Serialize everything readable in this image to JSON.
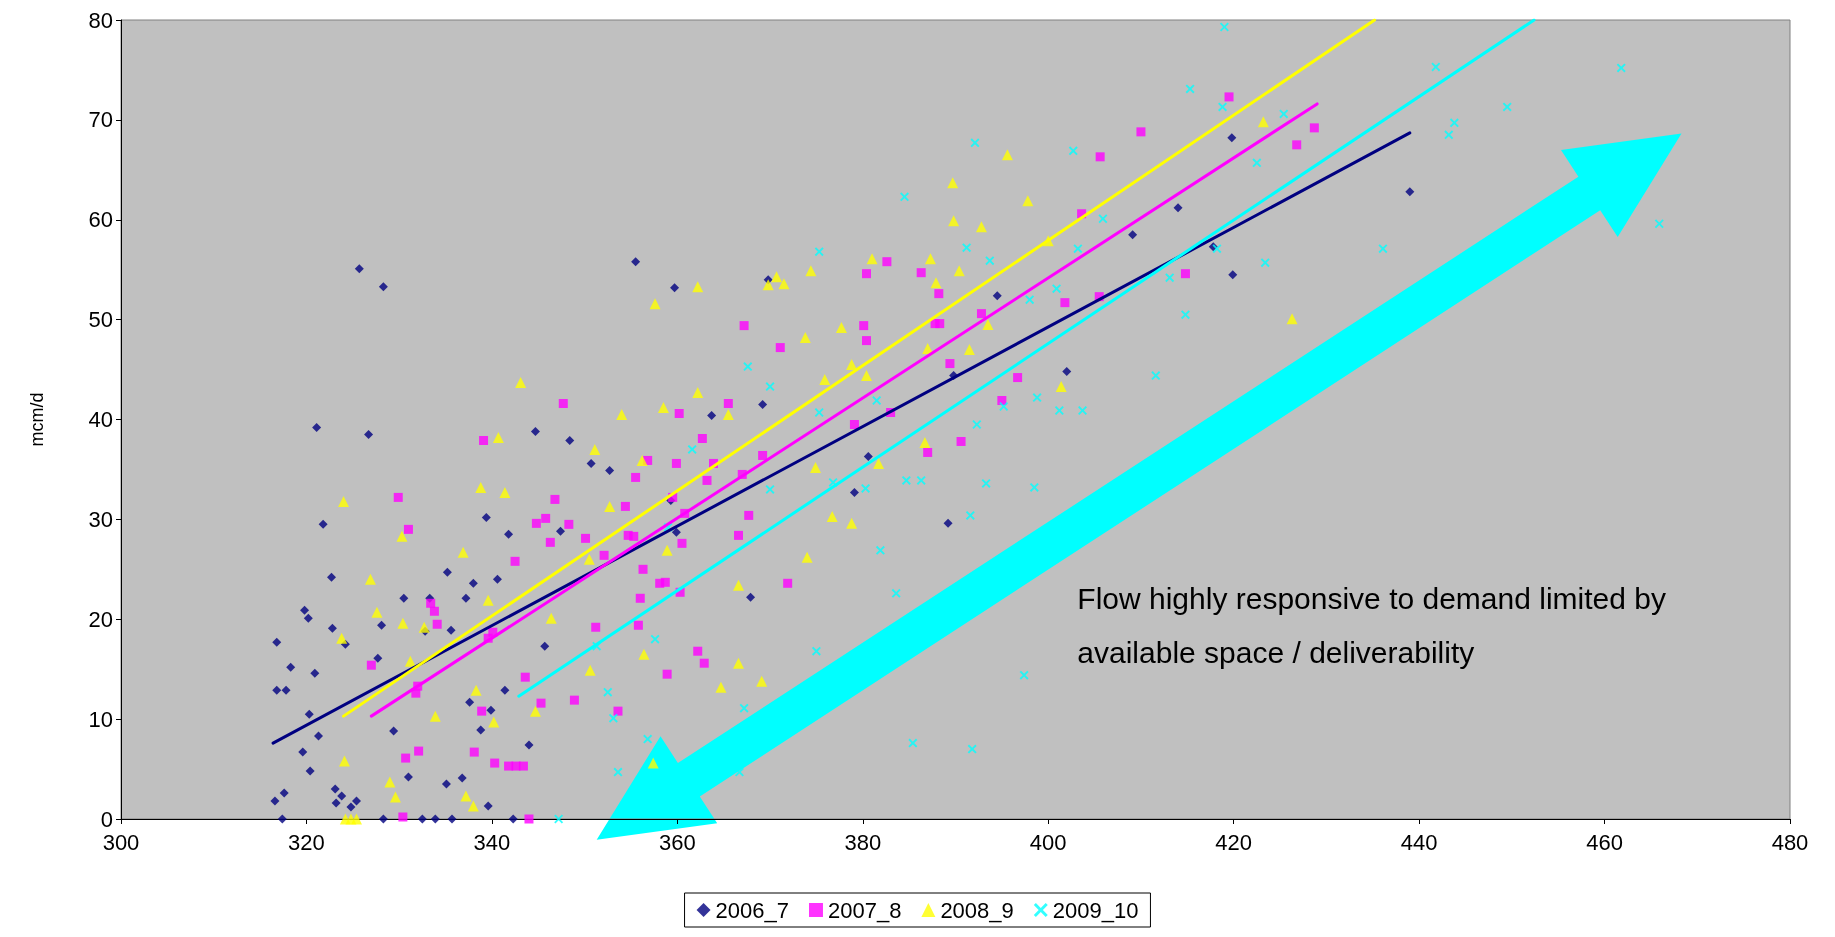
{
  "chart_data": {
    "type": "scatter",
    "ylabel": "mcm/d",
    "xlim": [
      300,
      480
    ],
    "xticks": [
      300,
      320,
      340,
      360,
      380,
      400,
      420,
      440,
      460,
      480
    ],
    "ylim": [
      0,
      80
    ],
    "yticks": [
      0,
      10,
      20,
      30,
      40,
      50,
      60,
      70,
      80
    ],
    "grid": false,
    "legend": "bottom",
    "annotations": [
      "Flow highly responsive to demand limited by available space / deliverability"
    ],
    "series": [
      {
        "name": "2006_7",
        "color": "#000080",
        "marker": "diamond",
        "x": [
          316.6,
          316.8,
          316.8,
          317.4,
          317.6,
          317.8,
          318.3,
          319.6,
          319.8,
          320.2,
          320.3,
          320.4,
          320.9,
          321.1,
          321.3,
          321.8,
          322.7,
          322.8,
          323.1,
          323.2,
          323.8,
          324.2,
          324.8,
          325.4,
          325.7,
          326.7,
          327.7,
          328.1,
          328.3,
          328.3,
          329.4,
          330.5,
          331.0,
          332.5,
          332.8,
          333.3,
          333.9,
          335.1,
          335.2,
          335.6,
          335.7,
          336.8,
          337.2,
          337.6,
          338.0,
          338.8,
          339.4,
          339.6,
          339.9,
          340.6,
          341.4,
          341.8,
          342.3,
          344.0,
          344.7,
          345.7,
          347.4,
          348.4,
          350.7,
          352.7,
          355.5,
          359.3,
          359.9,
          359.7,
          363.7,
          367.9,
          369.2,
          369.8,
          379.1,
          380.6,
          389.2,
          394.5,
          402.0,
          409.1,
          414.0,
          417.8,
          419.8,
          419.9,
          439.0,
          389.8
        ],
        "values": [
          1.8,
          17.7,
          12.9,
          0,
          2.6,
          12.9,
          15.2,
          6.7,
          20.9,
          20.1,
          10.5,
          4.8,
          14.6,
          39.2,
          8.3,
          29.5,
          24.2,
          19.1,
          3.0,
          1.6,
          2.3,
          17.5,
          1.2,
          1.8,
          55.1,
          38.5,
          16.1,
          19.4,
          53.3,
          0,
          8.8,
          22.1,
          4.2,
          0,
          18.8,
          22.1,
          0,
          3.5,
          24.7,
          18.9,
          0,
          4.1,
          22.1,
          11.7,
          23.6,
          8.9,
          30.2,
          1.3,
          10.9,
          24.0,
          12.9,
          28.5,
          0,
          7.4,
          38.8,
          17.3,
          28.8,
          37.9,
          35.6,
          34.9,
          55.8,
          31.9,
          28.7,
          53.2,
          40.4,
          22.2,
          41.5,
          54.0,
          32.7,
          36.3,
          29.6,
          52.4,
          44.8,
          58.5,
          61.2,
          57.3,
          68.2,
          54.5,
          62.8,
          44.4
        ]
      },
      {
        "name": "2007_8",
        "color": "#ff00ff",
        "marker": "square",
        "x": [
          327.0,
          329.9,
          330.4,
          330.7,
          331.0,
          331.8,
          332.0,
          332.1,
          333.4,
          333.8,
          334.1,
          338.1,
          338.9,
          339.1,
          339.6,
          340.1,
          340.3,
          341.8,
          342.5,
          342.6,
          343.4,
          343.6,
          344.0,
          344.8,
          345.3,
          345.8,
          346.3,
          346.8,
          347.7,
          348.3,
          348.9,
          350.1,
          351.2,
          352.1,
          353.6,
          354.4,
          354.7,
          355.3,
          355.5,
          355.8,
          356.0,
          356.3,
          356.8,
          358.1,
          358.7,
          358.9,
          359.5,
          359.9,
          360.2,
          360.3,
          360.5,
          360.8,
          362.2,
          362.7,
          362.9,
          363.2,
          363.9,
          365.5,
          366.6,
          367.0,
          367.2,
          367.7,
          369.2,
          371.1,
          371.9,
          379.1,
          380.1,
          380.4,
          380.4,
          382.6,
          383.0,
          386.3,
          387.0,
          387.8,
          388.2,
          388.3,
          389.4,
          390.6,
          392.8,
          395.0,
          396.7,
          401.8,
          403.6,
          405.5,
          405.6,
          410.0,
          414.8,
          419.5,
          426.8,
          428.7
        ],
        "values": [
          15.4,
          32.2,
          0.2,
          6.1,
          29.0,
          12.6,
          13.3,
          6.8,
          21.6,
          20.8,
          19.5,
          6.7,
          10.8,
          37.9,
          18.1,
          18.7,
          5.6,
          5.3,
          25.8,
          5.3,
          5.3,
          14.2,
          0,
          29.6,
          11.6,
          30.1,
          27.7,
          32.0,
          41.6,
          29.5,
          11.9,
          28.1,
          19.2,
          26.4,
          10.8,
          31.3,
          28.4,
          28.3,
          34.2,
          19.4,
          22.1,
          25.0,
          35.9,
          23.6,
          23.7,
          14.5,
          32.2,
          35.6,
          40.6,
          22.7,
          27.6,
          30.6,
          16.8,
          38.1,
          15.6,
          33.9,
          35.6,
          41.6,
          28.4,
          34.5,
          49.4,
          30.4,
          36.4,
          47.2,
          23.6,
          39.5,
          49.4,
          47.9,
          54.6,
          55.8,
          40.7,
          54.7,
          36.7,
          49.6,
          52.6,
          49.6,
          45.6,
          37.8,
          50.6,
          41.9,
          44.2,
          51.7,
          60.6,
          52.3,
          66.3,
          68.8,
          54.6,
          72.3,
          67.5,
          69.2
        ]
      },
      {
        "name": "2008_9",
        "color": "#ffff00",
        "marker": "triangle",
        "x": [
          324.1,
          324.0,
          323.8,
          324.2,
          324.8,
          325.4,
          326.9,
          327.6,
          329.0,
          329.6,
          330.3,
          330.4,
          331.2,
          332.7,
          333.9,
          336.9,
          337.2,
          338.0,
          338.3,
          338.8,
          339.6,
          340.2,
          340.7,
          341.4,
          343.1,
          344.7,
          346.4,
          350.5,
          351.1,
          350.6,
          352.7,
          354.0,
          356.2,
          356.4,
          357.4,
          357.6,
          358.5,
          358.9,
          362.2,
          362.2,
          365.5,
          364.7,
          366.6,
          366.6,
          369.1,
          369.8,
          370.7,
          371.5,
          374.0,
          373.8,
          374.4,
          374.9,
          375.9,
          376.7,
          377.7,
          378.8,
          378.8,
          380.4,
          381.0,
          381.7,
          386.7,
          387.0,
          387.3,
          387.9,
          389.7,
          389.8,
          390.4,
          391.5,
          392.8,
          393.5,
          395.6,
          397.8,
          400.0,
          401.4,
          423.2,
          426.3
        ],
        "values": [
          5.8,
          31.8,
          18.1,
          0,
          0,
          0,
          24.0,
          20.7,
          3.7,
          2.2,
          28.3,
          19.6,
          15.8,
          19.2,
          10.3,
          26.7,
          2.3,
          1.3,
          12.9,
          33.2,
          21.9,
          9.7,
          38.2,
          32.7,
          43.7,
          10.8,
          20.1,
          26.0,
          37.0,
          14.9,
          31.3,
          40.5,
          35.9,
          16.5,
          5.6,
          51.6,
          41.2,
          26.9,
          53.3,
          42.7,
          40.5,
          13.2,
          23.4,
          15.6,
          13.8,
          53.5,
          54.3,
          53.6,
          26.2,
          48.2,
          54.9,
          35.2,
          44.0,
          30.3,
          49.2,
          29.6,
          45.5,
          44.4,
          56.1,
          35.6,
          37.7,
          47.1,
          56.1,
          53.7,
          63.7,
          59.9,
          54.9,
          47.0,
          59.3,
          49.5,
          66.5,
          61.9,
          57.9,
          43.3,
          69.8,
          50.1
        ]
      },
      {
        "name": "2009_10",
        "color": "#00ffff",
        "marker": "cross",
        "x": [
          347.2,
          351.3,
          352.5,
          353.1,
          353.6,
          356.8,
          357.6,
          359.0,
          361.6,
          366.7,
          367.6,
          367.2,
          370.0,
          370.0,
          375.0,
          375.3,
          375.3,
          376.8,
          380.3,
          381.5,
          381.9,
          383.6,
          384.5,
          384.7,
          385.4,
          386.3,
          391.2,
          391.6,
          391.8,
          392.1,
          392.3,
          393.3,
          393.7,
          395.2,
          397.4,
          398.0,
          398.5,
          398.8,
          400.9,
          401.2,
          402.7,
          403.7,
          403.2,
          405.9,
          411.6,
          413.1,
          415.3,
          414.8,
          418.2,
          418.8,
          419.0,
          422.5,
          423.4,
          425.4,
          436.1,
          441.8,
          443.2,
          443.8,
          449.5,
          461.8,
          465.9
        ],
        "values": [
          0,
          17.3,
          12.7,
          10.1,
          4.7,
          8.0,
          18.0,
          29.2,
          37.0,
          4.7,
          45.3,
          11.1,
          33.0,
          43.3,
          16.8,
          56.8,
          40.7,
          33.7,
          33.1,
          41.9,
          26.9,
          22.6,
          62.3,
          33.9,
          7.6,
          33.9,
          57.2,
          30.4,
          7.0,
          67.7,
          39.5,
          33.6,
          55.9,
          41.3,
          14.4,
          52.0,
          33.2,
          42.2,
          53.1,
          40.9,
          66.9,
          40.9,
          57.1,
          60.1,
          44.4,
          54.2,
          73.1,
          50.5,
          57.1,
          71.3,
          79.3,
          65.7,
          55.7,
          70.6,
          57.1,
          75.3,
          68.5,
          69.7,
          71.3,
          75.2,
          59.6
        ]
      },
      {
        "type": "line",
        "color": "#000080",
        "marker": "none",
        "x": [
          316.4,
          439.0
        ],
        "values": [
          7.6,
          68.7
        ]
      },
      {
        "type": "line",
        "color": "#ff00ff",
        "marker": "none",
        "x": [
          327.0,
          429.0
        ],
        "values": [
          10.3,
          71.6
        ]
      },
      {
        "type": "line",
        "color": "#ffff00",
        "marker": "none",
        "x": [
          324.0,
          435.2
        ],
        "values": [
          10.3,
          80
        ]
      },
      {
        "type": "line",
        "color": "#00ffff",
        "marker": "none",
        "x": [
          342.9,
          452.4
        ],
        "values": [
          12.3,
          80
        ]
      }
    ]
  }
}
